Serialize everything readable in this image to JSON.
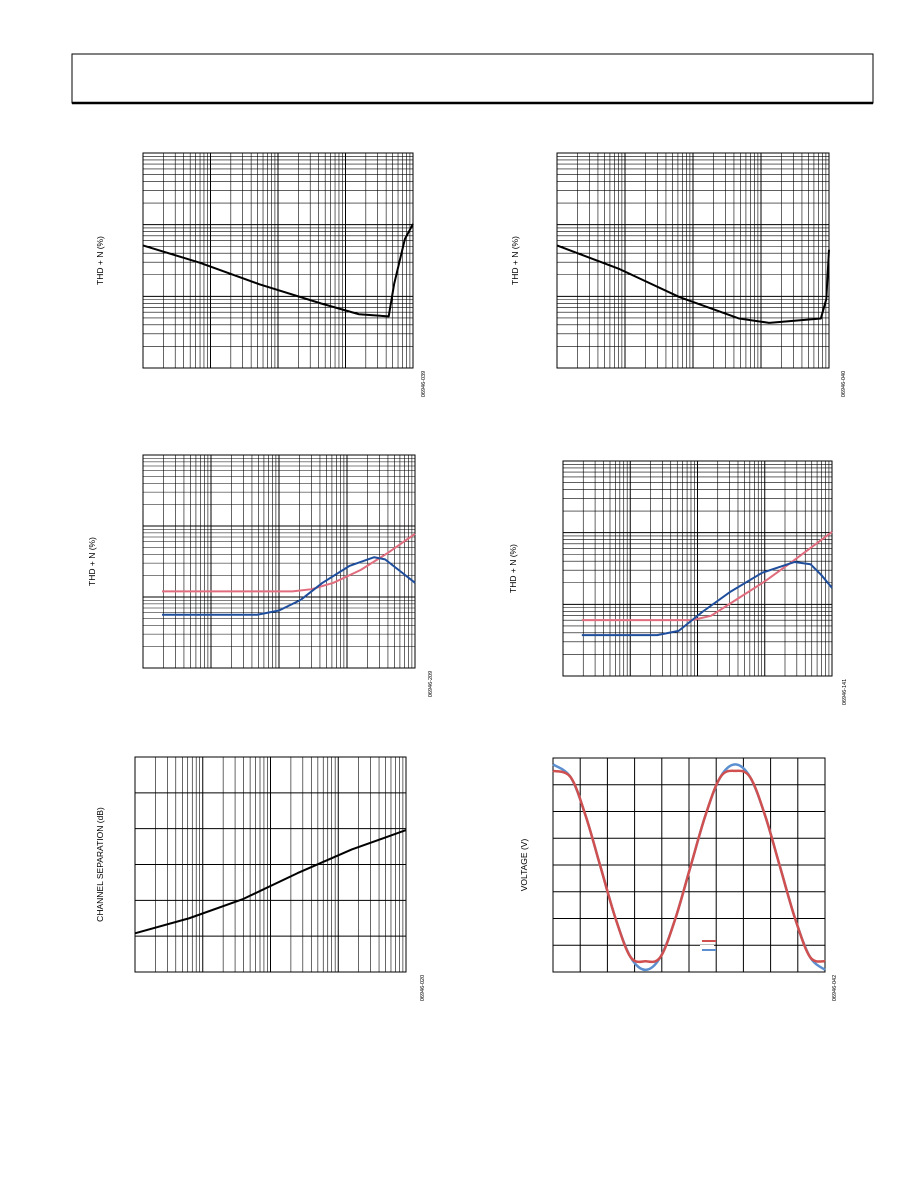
{
  "chart_data": [
    {
      "type": "line",
      "ylabel": "THD + N (%)",
      "figure_id": "06946-039",
      "xlim": [
        0,
        100
      ],
      "ylim": [
        0,
        100
      ],
      "xgrid": {
        "scale": "log",
        "divisions": 4
      },
      "ygrid": {
        "scale": "log",
        "divisions": 3
      },
      "series": [
        {
          "color": "#000000",
          "x": [
            0,
            21,
            43,
            66,
            80,
            91,
            93,
            97,
            100
          ],
          "values": [
            57,
            49,
            39,
            30,
            25,
            24,
            39,
            60,
            67
          ]
        }
      ]
    },
    {
      "type": "line",
      "ylabel": "THD + N (%)",
      "figure_id": "06946-040",
      "xlim": [
        0,
        100
      ],
      "ylim": [
        0,
        100
      ],
      "xgrid": {
        "scale": "log",
        "divisions": 4
      },
      "ygrid": {
        "scale": "log",
        "divisions": 3
      },
      "series": [
        {
          "color": "#000000",
          "x": [
            0,
            23,
            45,
            67,
            78,
            97,
            99,
            100
          ],
          "values": [
            57,
            46,
            33,
            23,
            21,
            23,
            32,
            55
          ]
        }
      ]
    },
    {
      "type": "line",
      "ylabel": "THD + N (%)",
      "figure_id": "06946-209",
      "xlim": [
        0,
        100
      ],
      "ylim": [
        0,
        100
      ],
      "xgrid": {
        "scale": "log",
        "divisions": 4
      },
      "ygrid": {
        "scale": "log",
        "divisions": 3
      },
      "series": [
        {
          "color": "#e06c7e",
          "x": [
            7,
            55,
            62,
            70,
            80,
            90,
            100
          ],
          "values": [
            36,
            36,
            37,
            40,
            46,
            54,
            63
          ]
        },
        {
          "color": "#1f4e9c",
          "x": [
            7,
            42,
            50,
            58,
            66,
            76,
            85,
            89,
            95,
            100
          ],
          "values": [
            25,
            25,
            27,
            32,
            40,
            48,
            52,
            51,
            45,
            40
          ]
        }
      ]
    },
    {
      "type": "line",
      "ylabel": "THD + N (%)",
      "figure_id": "06946-141",
      "xlim": [
        0,
        100
      ],
      "ylim": [
        0,
        100
      ],
      "xgrid": {
        "scale": "log",
        "divisions": 4
      },
      "ygrid": {
        "scale": "log",
        "divisions": 3
      },
      "series": [
        {
          "color": "#e06c7e",
          "x": [
            7,
            48,
            55,
            65,
            75,
            85,
            100
          ],
          "values": [
            26,
            26,
            28,
            36,
            44,
            53,
            67
          ]
        },
        {
          "color": "#1f4e9c",
          "x": [
            7,
            35,
            43,
            52,
            62,
            74,
            86,
            92,
            96,
            100
          ],
          "values": [
            19,
            19,
            21,
            30,
            39,
            48,
            53,
            52,
            47,
            41
          ]
        }
      ]
    },
    {
      "type": "line",
      "ylabel": "CHANNEL SEPARATION (dB)",
      "figure_id": "06946-020",
      "xlim": [
        0,
        100
      ],
      "ylim": [
        0,
        100
      ],
      "xgrid": {
        "scale": "log",
        "divisions": 4
      },
      "ygrid": {
        "scale": "linear",
        "divisions": 6
      },
      "series": [
        {
          "color": "#000000",
          "x": [
            0,
            20,
            40,
            60,
            80,
            100
          ],
          "values": [
            18,
            25,
            34,
            46,
            57,
            66
          ]
        }
      ]
    },
    {
      "type": "wave",
      "ylabel": "VOLTAGE (V)",
      "figure_id": "06946-042",
      "xlim": [
        0,
        100
      ],
      "ylim": [
        0,
        100
      ],
      "xgrid": {
        "scale": "linear",
        "divisions": 10
      },
      "ygrid": {
        "scale": "linear",
        "divisions": 8
      },
      "series": [
        {
          "color": "#5b8fd0",
          "x": [
            0,
            6.5,
            12,
            17.5,
            23,
            28.5,
            34,
            39.5,
            45,
            50.5,
            56,
            61.5,
            67,
            72.5,
            78,
            83.5,
            89,
            94.5,
            100
          ],
          "values": [
            97,
            91,
            73,
            49,
            25,
            7,
            1,
            7,
            25,
            49,
            73,
            91,
            97,
            91,
            73,
            49,
            25,
            7,
            1
          ]
        },
        {
          "color": "#d0504f",
          "x": [
            0,
            6.5,
            12,
            17.5,
            23,
            28.5,
            34,
            39.5,
            45,
            50.5,
            56,
            61.5,
            67,
            72.5,
            78,
            83.5,
            89,
            94.5,
            100
          ],
          "values": [
            94,
            91,
            73,
            49,
            25,
            7,
            5,
            7,
            25,
            49,
            73,
            91,
            94,
            91,
            73,
            49,
            25,
            7,
            5
          ]
        }
      ]
    }
  ]
}
